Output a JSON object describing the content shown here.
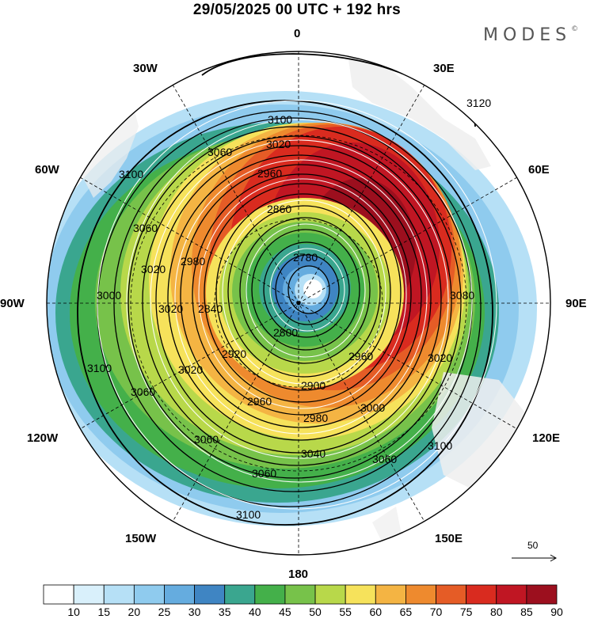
{
  "title": "29/05/2025  00 UTC  + 192 hrs",
  "logo": {
    "text": "MODES",
    "mark": "©"
  },
  "longitude_labels": [
    "0",
    "30E",
    "60E",
    "90E",
    "120E",
    "150E",
    "180",
    "150W",
    "120W",
    "90W",
    "60W",
    "30W"
  ],
  "contours": [
    "2780",
    "2800",
    "2840",
    "2860",
    "2900",
    "2920",
    "2960",
    "2980",
    "3000",
    "3020",
    "3040",
    "3060",
    "3080",
    "3100",
    "3120"
  ],
  "reference_vector": {
    "label": "50"
  },
  "colorbar": {
    "ticks": [
      "10",
      "15",
      "20",
      "25",
      "30",
      "35",
      "40",
      "45",
      "50",
      "55",
      "60",
      "65",
      "70",
      "75",
      "80",
      "85",
      "90"
    ],
    "colors": [
      "#ffffff",
      "#d9f0fb",
      "#b6e0f6",
      "#8fcbee",
      "#65acdf",
      "#3f85c3",
      "#3aa68f",
      "#44b04a",
      "#77c24a",
      "#b8d84a",
      "#f6e25b",
      "#f4b443",
      "#ee8a2e",
      "#e55c26",
      "#d92b1f",
      "#c01623",
      "#9c0f1e"
    ]
  }
}
